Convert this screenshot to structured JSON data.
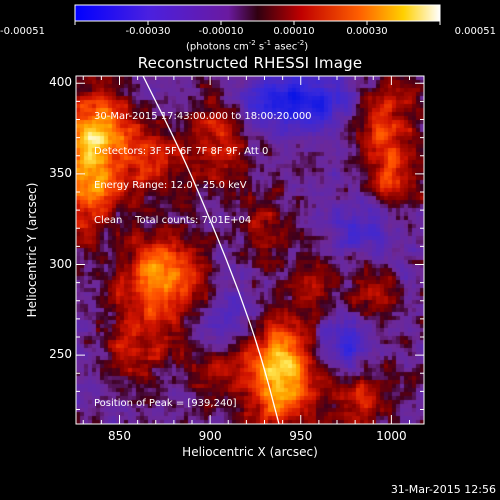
{
  "colorbar": {
    "ticks": [
      "-0.00051",
      "-0.00030",
      "-0.00010",
      "0.00010",
      "0.00030",
      "0.00051"
    ],
    "units_main": "(photons cm",
    "units_sup1": "-2",
    "units_mid1": " s",
    "units_sup2": "-1",
    "units_mid2": " asec",
    "units_sup3": "-2",
    "units_end": ")"
  },
  "chart_data": {
    "type": "heatmap",
    "title": "Reconstructed RHESSI Image",
    "xlabel": "Heliocentric X (arcsec)",
    "ylabel": "Heliocentric Y (arcsec)",
    "xlim": [
      826,
      1018
    ],
    "ylim": [
      212,
      404
    ],
    "x_ticks": [
      "850",
      "900",
      "950",
      "1000"
    ],
    "x_tick_values": [
      850,
      900,
      950,
      1000
    ],
    "y_ticks": [
      "250",
      "300",
      "350",
      "400"
    ],
    "y_tick_values": [
      250,
      300,
      350,
      400
    ],
    "color_range": [
      -0.00051,
      0.00051
    ],
    "colormap": "blue-purple-red-yellow-white",
    "limb_points": [
      [
        863,
        404
      ],
      [
        885,
        360
      ],
      [
        902,
        320
      ],
      [
        916,
        285
      ],
      [
        928,
        250
      ],
      [
        938,
        212
      ]
    ],
    "sources": [
      {
        "x": 939,
        "y": 240,
        "amp": 1.0,
        "sx": 13,
        "sy": 20
      },
      {
        "x": 832,
        "y": 352,
        "amp": 0.85,
        "sx": 12,
        "sy": 22
      },
      {
        "x": 874,
        "y": 294,
        "amp": 0.8,
        "sx": 16,
        "sy": 15
      },
      {
        "x": 866,
        "y": 360,
        "amp": 0.5,
        "sx": 14,
        "sy": 14
      },
      {
        "x": 840,
        "y": 380,
        "amp": 0.5,
        "sx": 12,
        "sy": 12
      },
      {
        "x": 906,
        "y": 370,
        "amp": 0.48,
        "sx": 10,
        "sy": 18
      },
      {
        "x": 996,
        "y": 380,
        "amp": 0.5,
        "sx": 12,
        "sy": 18
      },
      {
        "x": 1002,
        "y": 348,
        "amp": 0.42,
        "sx": 10,
        "sy": 12
      },
      {
        "x": 862,
        "y": 255,
        "amp": 0.4,
        "sx": 14,
        "sy": 16
      },
      {
        "x": 982,
        "y": 230,
        "amp": 0.4,
        "sx": 14,
        "sy": 14
      },
      {
        "x": 990,
        "y": 280,
        "amp": 0.3,
        "sx": 12,
        "sy": 12
      },
      {
        "x": 930,
        "y": 320,
        "amp": 0.35,
        "sx": 10,
        "sy": 12
      },
      {
        "x": 956,
        "y": 290,
        "amp": 0.3,
        "sx": 10,
        "sy": 10
      },
      {
        "x": 905,
        "y": 240,
        "amp": 0.3,
        "sx": 12,
        "sy": 12
      }
    ],
    "negatives": [
      {
        "x": 948,
        "y": 390,
        "amp": -0.75,
        "sx": 22,
        "sy": 10
      },
      {
        "x": 975,
        "y": 255,
        "amp": -0.55,
        "sx": 10,
        "sy": 12
      },
      {
        "x": 985,
        "y": 320,
        "amp": -0.35,
        "sx": 12,
        "sy": 10
      },
      {
        "x": 910,
        "y": 270,
        "amp": -0.3,
        "sx": 10,
        "sy": 12
      }
    ],
    "annotations": {
      "line1": "30-Mar-2015 17:43:00.000 to 18:00:20.000",
      "line2": "Detectors: 3F 5F 6F 7F 8F 9F, Att 0",
      "line3": "Energy Range: 12.0 - 25.0 keV",
      "line4": "Clean    Total counts: 7.01E+04",
      "peak": "Position of Peak = [939,240]"
    }
  },
  "footer": {
    "timestamp": "31-Mar-2015 12:56"
  }
}
